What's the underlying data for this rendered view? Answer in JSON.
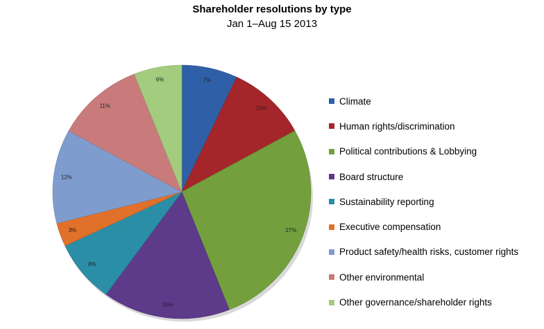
{
  "chart_data": {
    "type": "pie",
    "title": "Shareholder resolutions by type",
    "subtitle": "Jan 1–Aug 15 2013",
    "slices": [
      {
        "name": "Climate",
        "value": 7,
        "label": "7%",
        "color": "#2f5fa6"
      },
      {
        "name": "Human rights/discrimination",
        "value": 10,
        "label": "10%",
        "color": "#a5262a"
      },
      {
        "name": "Political contributions & Lobbying",
        "value": 27,
        "label": "27%",
        "color": "#73a03c"
      },
      {
        "name": "Board structure",
        "value": 16,
        "label": "16%",
        "color": "#5d3a8a"
      },
      {
        "name": "Sustainability reporting",
        "value": 8,
        "label": "8%",
        "color": "#2a8fa6"
      },
      {
        "name": "Executive compensation",
        "value": 3,
        "label": "3%",
        "color": "#e0702a"
      },
      {
        "name": "Product safety/health risks, customer rights",
        "value": 12,
        "label": "12%",
        "color": "#7f9ccf"
      },
      {
        "name": "Other environmental",
        "value": 11,
        "label": "11%",
        "color": "#c97b7c"
      },
      {
        "name": "Other governance/shareholder rights",
        "value": 6,
        "label": "6%",
        "color": "#a3cc7e"
      }
    ],
    "legend_position": "right"
  }
}
